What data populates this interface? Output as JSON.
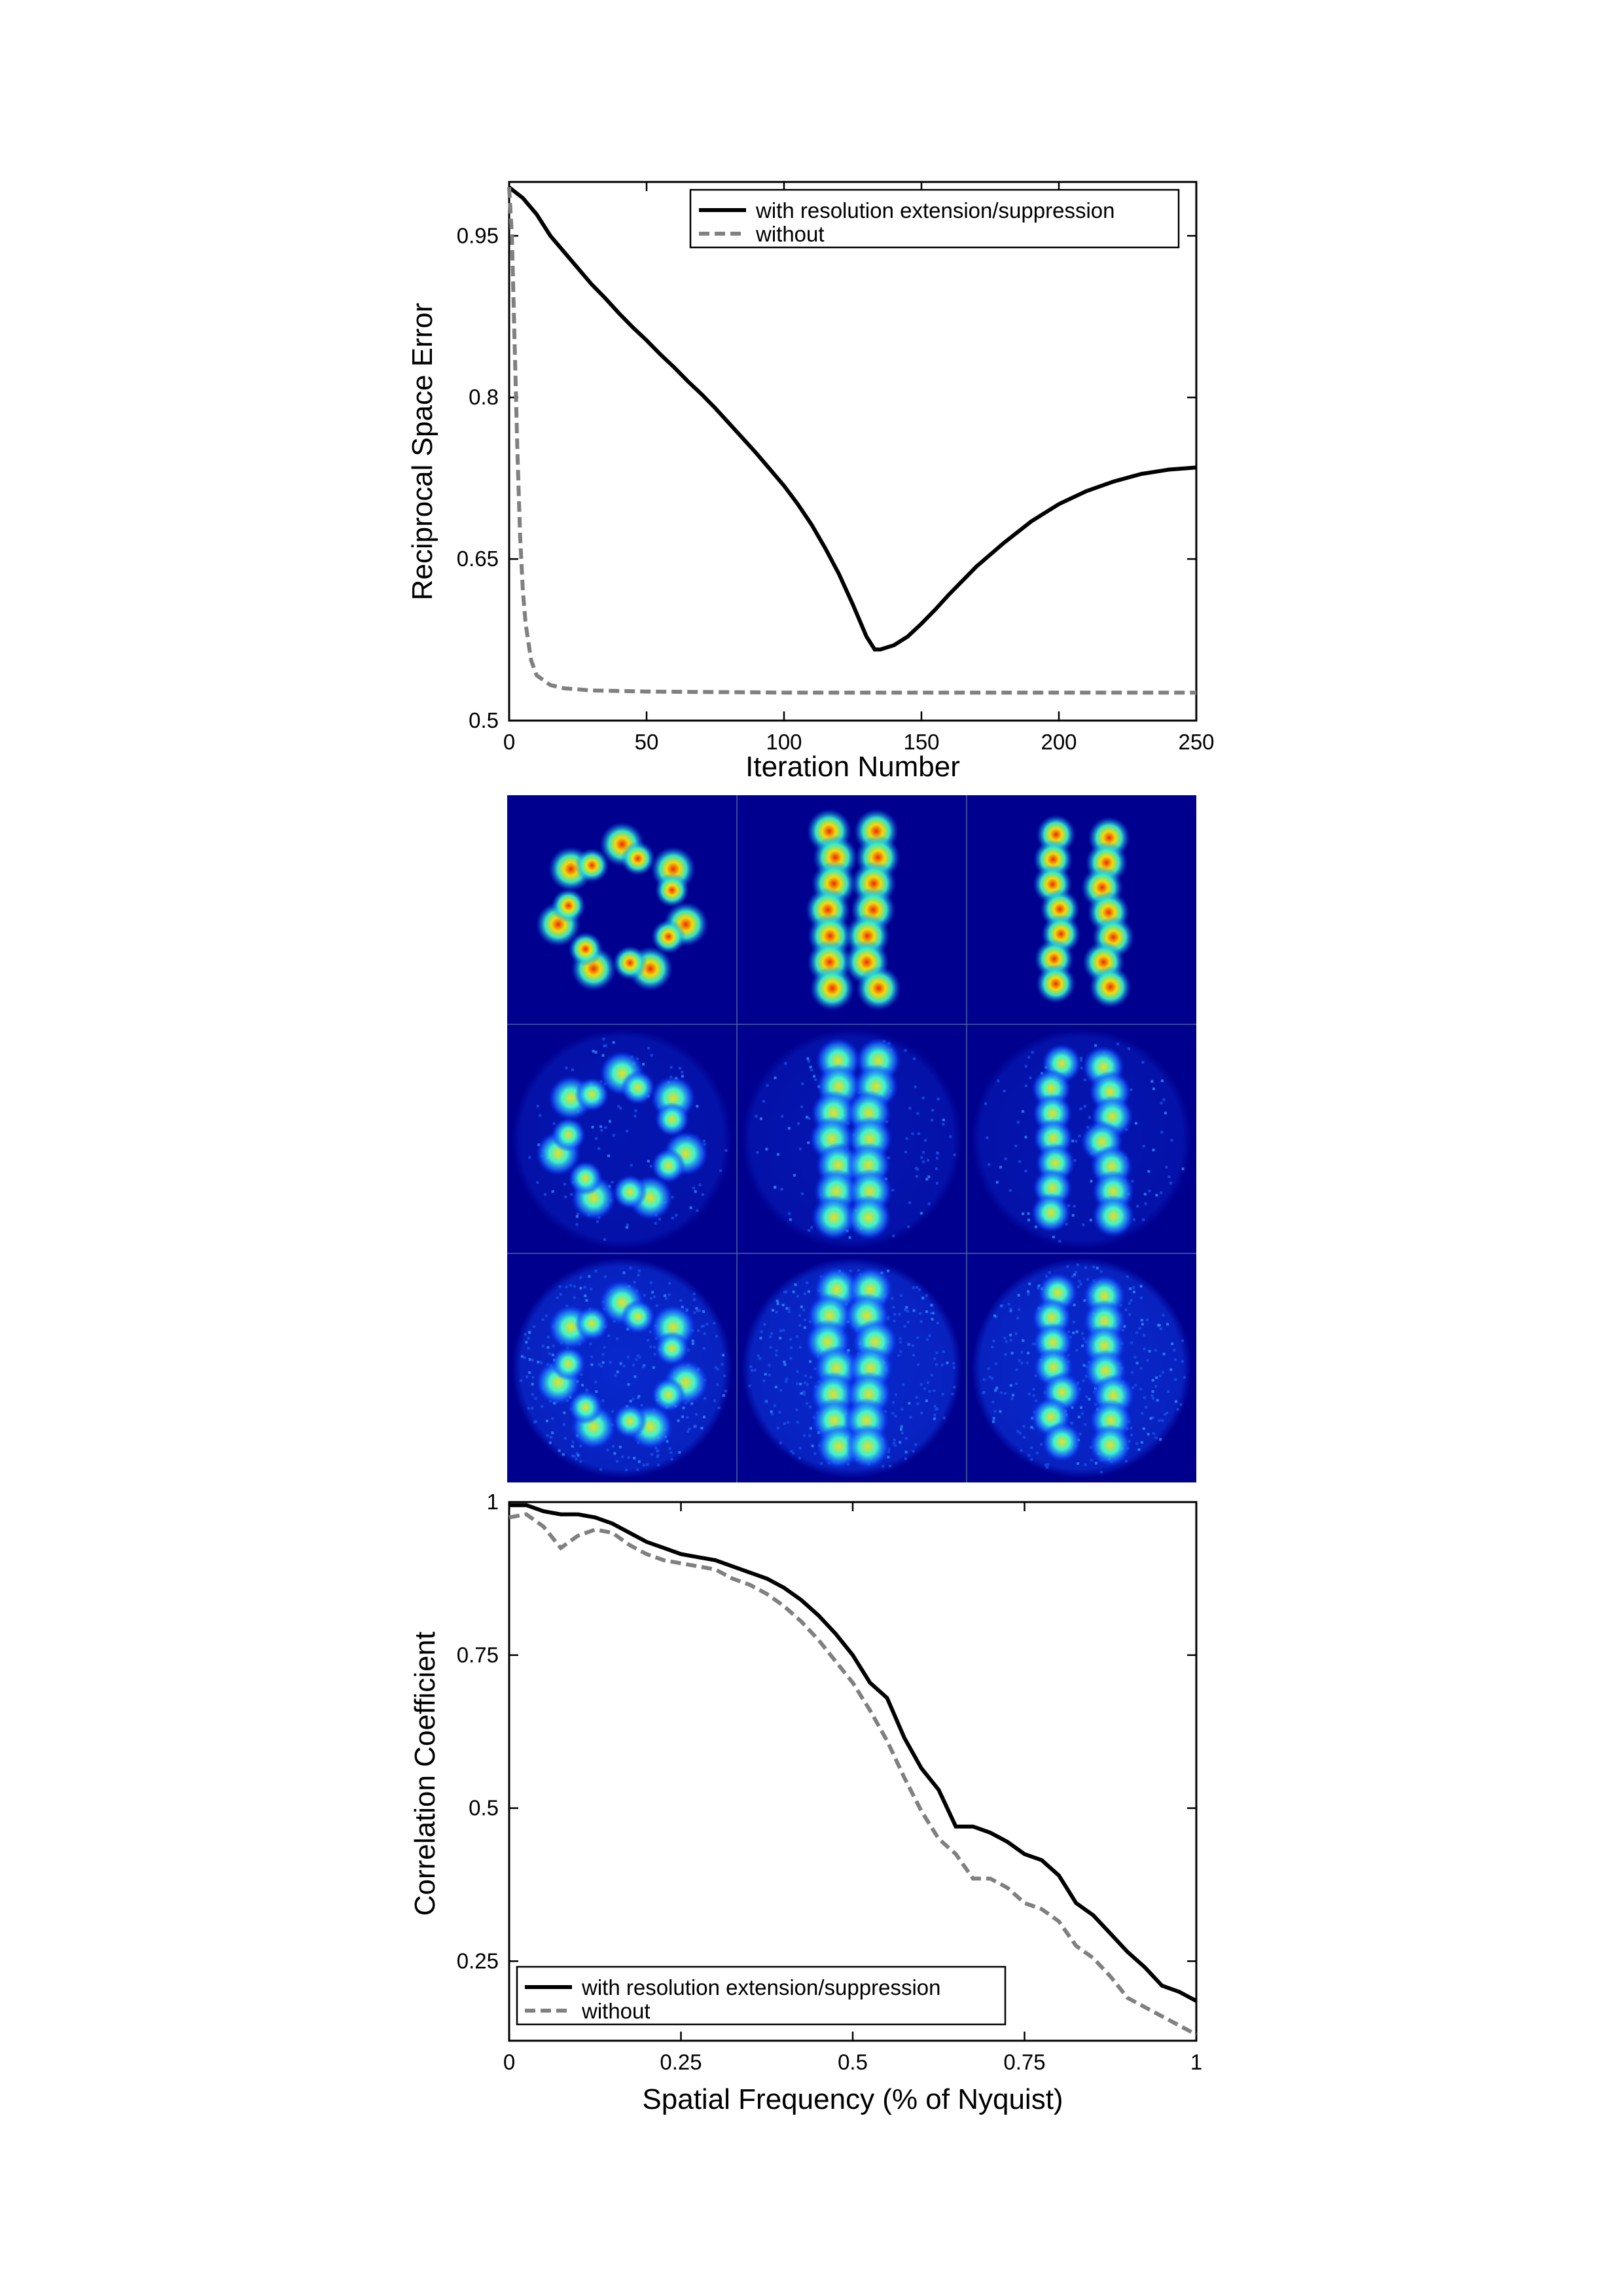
{
  "chart_data": [
    {
      "type": "line",
      "xlabel": "Iteration Number",
      "ylabel": "Reciprocal Space Error",
      "xlim": [
        0,
        250
      ],
      "ylim": [
        0.5,
        1.0
      ],
      "xticks": [
        0,
        50,
        100,
        150,
        200,
        250
      ],
      "xtick_labels": [
        "0",
        "50",
        "100",
        "150",
        "200",
        "250"
      ],
      "yticks": [
        0.5,
        0.65,
        0.8,
        0.95
      ],
      "ytick_labels": [
        "0.5",
        "0.65",
        "0.8",
        "0.95"
      ],
      "grid": false,
      "legend_position": "top-right",
      "series": [
        {
          "name": "with resolution extension/suppression",
          "color": "#000000",
          "style": "solid",
          "x": [
            0,
            5,
            10,
            15,
            20,
            25,
            30,
            35,
            40,
            45,
            50,
            55,
            60,
            65,
            70,
            75,
            80,
            85,
            90,
            95,
            100,
            105,
            110,
            115,
            120,
            125,
            130,
            133,
            135,
            140,
            145,
            150,
            155,
            160,
            170,
            180,
            190,
            200,
            210,
            220,
            230,
            240,
            250
          ],
          "y": [
            0.995,
            0.985,
            0.97,
            0.95,
            0.935,
            0.92,
            0.905,
            0.892,
            0.878,
            0.865,
            0.853,
            0.84,
            0.828,
            0.815,
            0.803,
            0.79,
            0.776,
            0.762,
            0.748,
            0.733,
            0.718,
            0.701,
            0.682,
            0.66,
            0.636,
            0.608,
            0.578,
            0.566,
            0.566,
            0.57,
            0.578,
            0.59,
            0.603,
            0.617,
            0.643,
            0.665,
            0.685,
            0.701,
            0.713,
            0.722,
            0.729,
            0.733,
            0.735
          ]
        },
        {
          "name": "without",
          "color": "#808080",
          "style": "dashed",
          "x": [
            0,
            1,
            2,
            3,
            4,
            5,
            6,
            8,
            10,
            15,
            20,
            30,
            50,
            100,
            150,
            200,
            250
          ],
          "y": [
            0.995,
            0.95,
            0.85,
            0.75,
            0.67,
            0.62,
            0.59,
            0.556,
            0.542,
            0.533,
            0.53,
            0.528,
            0.527,
            0.526,
            0.526,
            0.526,
            0.526
          ]
        }
      ]
    },
    {
      "type": "line",
      "xlabel": "Spatial Frequency (% of Nyquist)",
      "ylabel": "Correlation Coefficient",
      "xlim": [
        0,
        1
      ],
      "ylim": [
        0.12,
        1.0
      ],
      "xticks": [
        0,
        0.25,
        0.5,
        0.75,
        1
      ],
      "xtick_labels": [
        "0",
        "0.25",
        "0.5",
        "0.75",
        "1"
      ],
      "yticks": [
        0.25,
        0.5,
        0.75,
        1
      ],
      "ytick_labels": [
        "0.25",
        "0.5",
        "0.75",
        "1"
      ],
      "grid": false,
      "legend_position": "bottom-left",
      "series": [
        {
          "name": "with resolution extension/suppression",
          "color": "#000000",
          "style": "solid",
          "x": [
            0,
            0.025,
            0.05,
            0.075,
            0.1,
            0.125,
            0.15,
            0.175,
            0.2,
            0.225,
            0.25,
            0.275,
            0.3,
            0.325,
            0.35,
            0.375,
            0.4,
            0.425,
            0.45,
            0.475,
            0.5,
            0.525,
            0.55,
            0.575,
            0.6,
            0.625,
            0.65,
            0.675,
            0.7,
            0.725,
            0.75,
            0.775,
            0.8,
            0.825,
            0.85,
            0.875,
            0.9,
            0.925,
            0.95,
            0.975,
            1.0
          ],
          "y": [
            0.995,
            0.995,
            0.985,
            0.98,
            0.98,
            0.975,
            0.965,
            0.95,
            0.935,
            0.925,
            0.915,
            0.91,
            0.905,
            0.895,
            0.885,
            0.875,
            0.86,
            0.84,
            0.815,
            0.785,
            0.75,
            0.705,
            0.68,
            0.615,
            0.565,
            0.53,
            0.47,
            0.47,
            0.46,
            0.445,
            0.425,
            0.415,
            0.39,
            0.345,
            0.325,
            0.295,
            0.265,
            0.24,
            0.21,
            0.2,
            0.185
          ]
        },
        {
          "name": "without",
          "color": "#808080",
          "style": "dashed",
          "x": [
            0,
            0.025,
            0.05,
            0.075,
            0.1,
            0.125,
            0.15,
            0.175,
            0.2,
            0.225,
            0.25,
            0.275,
            0.3,
            0.325,
            0.35,
            0.375,
            0.4,
            0.425,
            0.45,
            0.475,
            0.5,
            0.525,
            0.55,
            0.575,
            0.6,
            0.625,
            0.65,
            0.675,
            0.7,
            0.725,
            0.75,
            0.775,
            0.8,
            0.825,
            0.85,
            0.875,
            0.9,
            0.925,
            0.95,
            0.975,
            1.0
          ],
          "y": [
            0.975,
            0.98,
            0.96,
            0.925,
            0.945,
            0.955,
            0.95,
            0.93,
            0.915,
            0.905,
            0.9,
            0.895,
            0.89,
            0.875,
            0.865,
            0.85,
            0.83,
            0.805,
            0.775,
            0.74,
            0.705,
            0.66,
            0.61,
            0.55,
            0.495,
            0.45,
            0.425,
            0.385,
            0.385,
            0.37,
            0.345,
            0.335,
            0.315,
            0.275,
            0.255,
            0.225,
            0.19,
            0.175,
            0.16,
            0.145,
            0.13
          ]
        }
      ]
    }
  ],
  "colors": {
    "panel_background": "#00008f",
    "panel_divider": "#4a6a9e"
  }
}
